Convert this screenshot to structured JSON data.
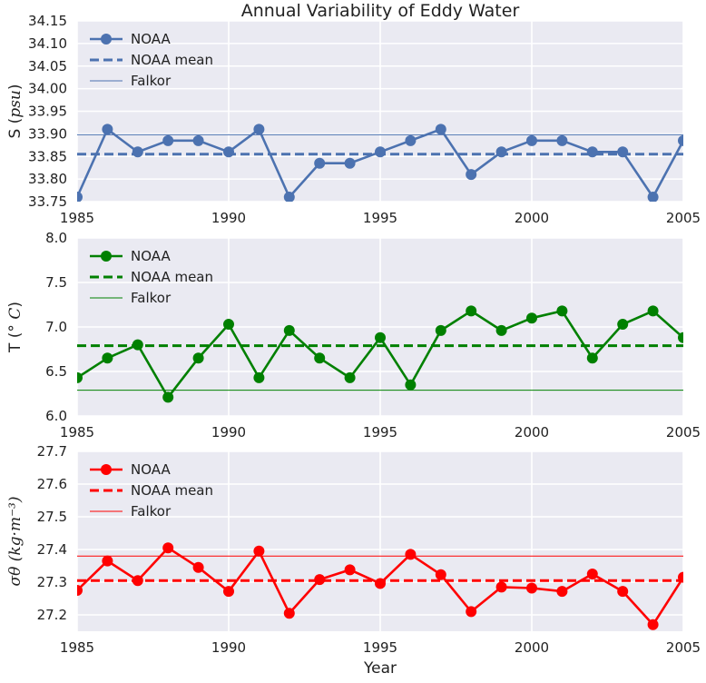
{
  "chart_data": [
    {
      "type": "line",
      "title": "Annual Variability of Eddy Water",
      "ylabel": "S ($psu$)",
      "ylabel_prefix": "S (",
      "ylabel_math": "psu",
      "ylabel_suffix": ")",
      "xlabel": "",
      "xlim": [
        1985,
        2005
      ],
      "ylim": [
        33.75,
        34.15
      ],
      "xticks": [
        1985,
        1990,
        1995,
        2000,
        2005
      ],
      "yticks": [
        "33.75",
        "33.80",
        "33.85",
        "33.90",
        "33.95",
        "34.00",
        "34.05",
        "34.10",
        "34.15"
      ],
      "grid": true,
      "legend": "top-left",
      "color": "#4C72B0",
      "x": [
        1985,
        1986,
        1987,
        1988,
        1989,
        1990,
        1991,
        1992,
        1993,
        1994,
        1995,
        1996,
        1997,
        1998,
        1999,
        2000,
        2001,
        2002,
        2003,
        2004,
        2005
      ],
      "series": [
        {
          "name": "NOAA",
          "style": "line-marker",
          "values": [
            33.76,
            33.91,
            33.86,
            33.885,
            33.885,
            33.86,
            33.91,
            33.76,
            33.835,
            33.835,
            33.86,
            33.885,
            33.91,
            33.81,
            33.86,
            33.885,
            33.885,
            33.86,
            33.86,
            33.76,
            33.885
          ]
        },
        {
          "name": "NOAA mean",
          "style": "dashed",
          "value": 33.855
        },
        {
          "name": "Falkor",
          "style": "thin",
          "value": 33.898
        }
      ]
    },
    {
      "type": "line",
      "title": "",
      "ylabel": "T ($^\\circ C$)",
      "ylabel_prefix": "T (",
      "ylabel_math": "° C",
      "ylabel_suffix": ")",
      "xlabel": "",
      "xlim": [
        1985,
        2005
      ],
      "ylim": [
        6.0,
        8.0
      ],
      "xticks": [
        1985,
        1990,
        1995,
        2000,
        2005
      ],
      "yticks": [
        "6.0",
        "6.5",
        "7.0",
        "7.5",
        "8.0"
      ],
      "grid": true,
      "legend": "top-left",
      "color": "#008000",
      "x": [
        1985,
        1986,
        1987,
        1988,
        1989,
        1990,
        1991,
        1992,
        1993,
        1994,
        1995,
        1996,
        1997,
        1998,
        1999,
        2000,
        2001,
        2002,
        2003,
        2004,
        2005
      ],
      "series": [
        {
          "name": "NOAA",
          "style": "line-marker",
          "values": [
            6.43,
            6.65,
            6.8,
            6.21,
            6.65,
            7.03,
            6.43,
            6.96,
            6.65,
            6.43,
            6.88,
            6.35,
            6.96,
            7.18,
            6.96,
            7.1,
            7.18,
            6.65,
            7.03,
            7.18,
            6.88
          ]
        },
        {
          "name": "NOAA mean",
          "style": "dashed",
          "value": 6.79
        },
        {
          "name": "Falkor",
          "style": "thin",
          "value": 6.29
        }
      ]
    },
    {
      "type": "line",
      "title": "",
      "ylabel": "$\\sigma_\\theta$ ($kg{\\cdot}m^{-3}$)",
      "ylabel_prefix": "",
      "ylabel_math": "σθ (kg·m⁻³)",
      "ylabel_suffix": "",
      "xlabel": "Year",
      "xlim": [
        1985,
        2005
      ],
      "ylim": [
        27.15,
        27.7
      ],
      "xticks": [
        1985,
        1990,
        1995,
        2000,
        2005
      ],
      "yticks": [
        "27.2",
        "27.3",
        "27.4",
        "27.5",
        "27.6",
        "27.7"
      ],
      "grid": true,
      "legend": "top-left",
      "color": "#FF0000",
      "x": [
        1985,
        1986,
        1987,
        1988,
        1989,
        1990,
        1991,
        1992,
        1993,
        1994,
        1995,
        1996,
        1997,
        1998,
        1999,
        2000,
        2001,
        2002,
        2003,
        2004,
        2005
      ],
      "series": [
        {
          "name": "NOAA",
          "style": "line-marker",
          "values": [
            27.275,
            27.365,
            27.305,
            27.405,
            27.345,
            27.272,
            27.395,
            27.205,
            27.308,
            27.338,
            27.296,
            27.385,
            27.323,
            27.21,
            27.285,
            27.282,
            27.272,
            27.325,
            27.272,
            27.17,
            27.315
          ]
        },
        {
          "name": "NOAA mean",
          "style": "dashed",
          "value": 27.305
        },
        {
          "name": "Falkor",
          "style": "thin",
          "value": 27.38
        }
      ]
    }
  ]
}
